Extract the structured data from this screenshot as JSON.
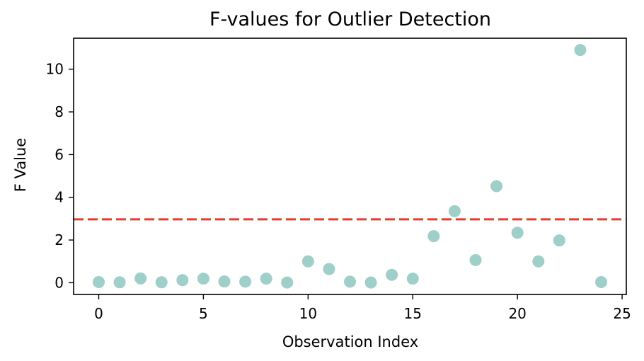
{
  "chart_data": {
    "type": "scatter",
    "title": "F-values for Outlier Detection",
    "xlabel": "Observation Index",
    "ylabel": "F Value",
    "xlim": [
      -1.2,
      25.2
    ],
    "ylim": [
      -0.55,
      11.45
    ],
    "xticks": [
      0,
      5,
      10,
      15,
      20,
      25
    ],
    "yticks": [
      0,
      2,
      4,
      6,
      8,
      10
    ],
    "grid": false,
    "threshold": 2.97,
    "series": [
      {
        "color": "#9ecfc9",
        "x": [
          0,
          1,
          2,
          3,
          4,
          5,
          6,
          7,
          8,
          9,
          10,
          11,
          12,
          13,
          14,
          15,
          16,
          17,
          18,
          19,
          20,
          21,
          22,
          23,
          24
        ],
        "y": [
          0.03,
          0.02,
          0.2,
          0.02,
          0.12,
          0.19,
          0.06,
          0.05,
          0.19,
          0.01,
          1.0,
          0.64,
          0.05,
          0.01,
          0.37,
          0.19,
          2.18,
          3.35,
          1.06,
          4.52,
          2.34,
          1.0,
          1.98,
          10.9,
          0.03
        ]
      }
    ],
    "threshold_color": "#e8392e"
  }
}
